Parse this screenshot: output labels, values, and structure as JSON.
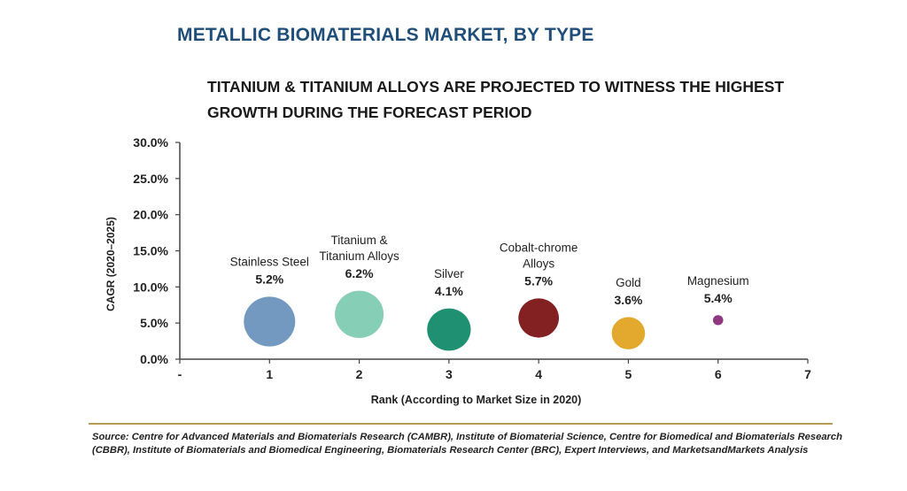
{
  "header": {
    "title": "METALLIC BIOMATERIALS MARKET, BY TYPE",
    "subtitle_line1": "TITANIUM & TITANIUM ALLOYS ARE PROJECTED TO WITNESS THE HIGHEST",
    "subtitle_line2": "GROWTH DURING THE FORECAST PERIOD"
  },
  "chart_data": {
    "type": "scatter",
    "subtype": "bubble",
    "xlabel": "Rank (According to Market Size in 2020)",
    "ylabel": "CAGR (2020–2025)",
    "x_ticks": [
      "-",
      "1",
      "2",
      "3",
      "4",
      "5",
      "6",
      "7"
    ],
    "y_ticks": [
      "0.0%",
      "5.0%",
      "10.0%",
      "15.0%",
      "20.0%",
      "25.0%",
      "30.0%"
    ],
    "xlim": [
      0,
      7
    ],
    "ylim": [
      0,
      30
    ],
    "grid": false,
    "points": [
      {
        "label_lines": [
          "Stainless Steel"
        ],
        "value_label": "5.2%",
        "x": 1,
        "y": 5.2,
        "size": 1.0,
        "color": "#6d93bd"
      },
      {
        "label_lines": [
          "Titanium &",
          "Titanium Alloys"
        ],
        "value_label": "6.2%",
        "x": 2,
        "y": 6.2,
        "size": 0.9,
        "color": "#7fcbb2"
      },
      {
        "label_lines": [
          "Silver"
        ],
        "value_label": "4.1%",
        "x": 3,
        "y": 4.1,
        "size": 0.72,
        "color": "#138a6a"
      },
      {
        "label_lines": [
          "Cobalt-chrome",
          "Alloys"
        ],
        "value_label": "5.7%",
        "x": 4,
        "y": 5.7,
        "size": 0.62,
        "color": "#7b1416"
      },
      {
        "label_lines": [
          "Gold"
        ],
        "value_label": "3.6%",
        "x": 5,
        "y": 3.6,
        "size": 0.42,
        "color": "#e0a423"
      },
      {
        "label_lines": [
          "Magnesium"
        ],
        "value_label": "5.4%",
        "x": 6,
        "y": 5.4,
        "size": 0.04,
        "color": "#8a2d7a"
      }
    ]
  },
  "footer": {
    "source": "Source: Centre for Advanced Materials and Biomaterials Research (CAMBR), Institute of Biomaterial Science, Centre for Biomedical and Biomaterials Research (CBBR), Institute of Biomaterials and Biomedical Engineering, Biomaterials Research Center (BRC), Expert Interviews, and MarketsandMarkets Analysis"
  }
}
